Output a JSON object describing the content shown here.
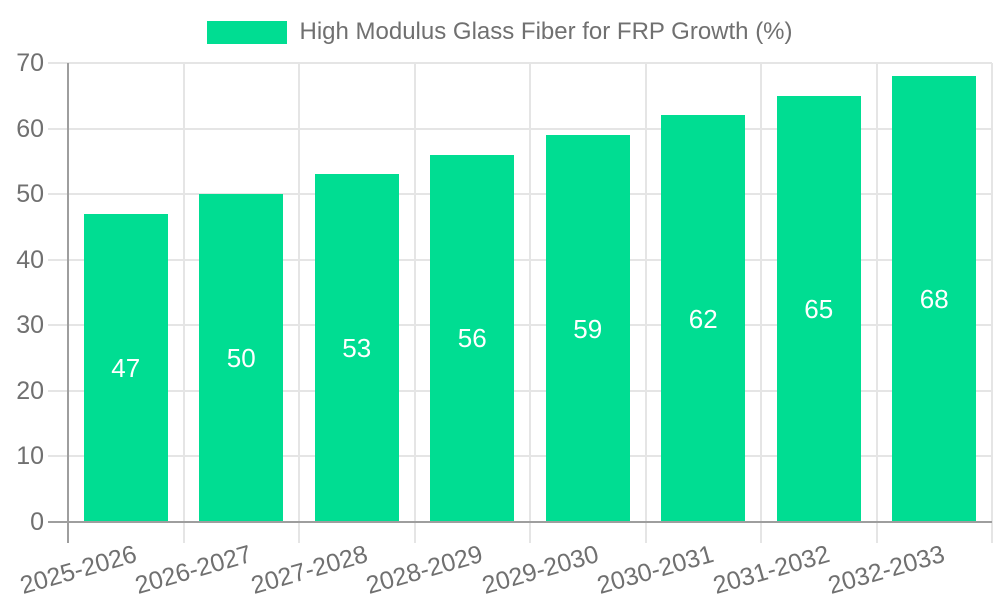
{
  "chart_data": {
    "type": "bar",
    "title": "High Modulus Glass Fiber for FRP Growth (%)",
    "categories": [
      "2025-2026",
      "2026-2027",
      "2027-2028",
      "2028-2029",
      "2029-2030",
      "2030-2031",
      "2031-2032",
      "2032-2033"
    ],
    "values": [
      47,
      50,
      53,
      56,
      59,
      62,
      65,
      68
    ],
    "xlabel": "",
    "ylabel": "",
    "ylim": [
      0,
      70
    ],
    "yticks": [
      0,
      10,
      20,
      30,
      40,
      50,
      60,
      70
    ],
    "grid": true,
    "legend_position": "top-center",
    "value_label_position": "inside-center",
    "x_label_rotation_deg": -16
  },
  "legend": {
    "items": [
      {
        "label": "High Modulus Glass Fiber for FRP Growth (%)",
        "color": "#00DD92"
      }
    ]
  },
  "colors": {
    "background": "#FFFFFF",
    "bar": "#00DD92",
    "grid": "#E5E5E5",
    "axis": "#9E9E9E",
    "text": "#707070",
    "value_text": "#FFFFFF"
  }
}
